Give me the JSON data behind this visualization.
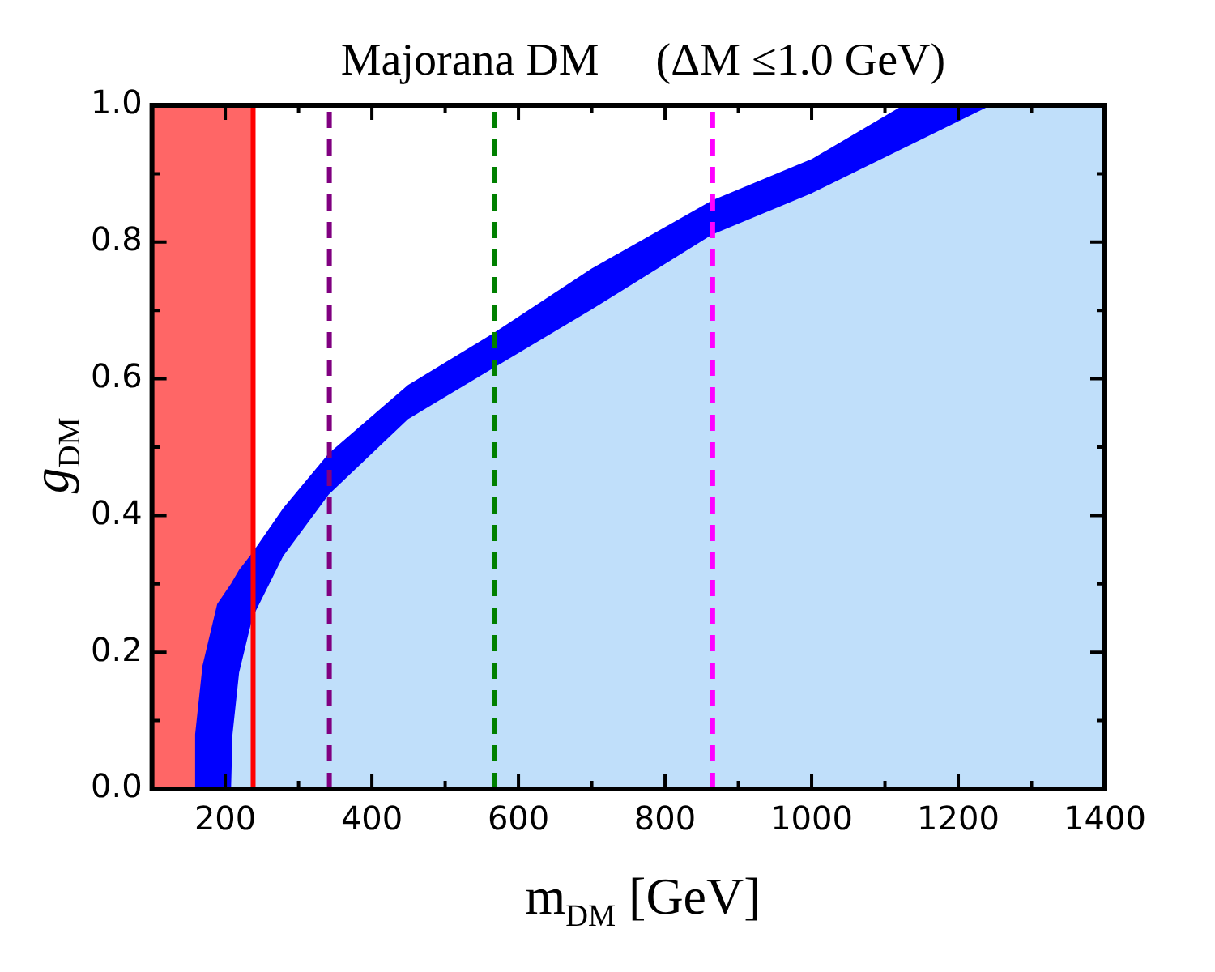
{
  "chart_data": {
    "type": "area",
    "title": "Majorana DM     (ΔM ≤1.0 GeV)",
    "xlabel": "m$_{DM}$ [GeV]",
    "ylabel": "g$_{DM}$",
    "xlim": [
      100,
      1400
    ],
    "ylim": [
      0,
      1
    ],
    "xticks": [
      {
        "value": 100,
        "label": null
      },
      200,
      {
        "value": 300,
        "label": null
      },
      400,
      {
        "value": 500,
        "label": null
      },
      600,
      {
        "value": 700,
        "label": null
      },
      800,
      {
        "value": 900,
        "label": null
      },
      1000,
      {
        "value": 1100,
        "label": null
      },
      1200,
      {
        "value": 1300,
        "label": null
      },
      1400
    ],
    "yticks": [
      {
        "value": 0,
        "label": "0.0"
      },
      {
        "value": 0.1,
        "label": null
      },
      {
        "value": 0.2,
        "label": "0.2"
      },
      {
        "value": 0.3,
        "label": null
      },
      {
        "value": 0.4,
        "label": "0.4"
      },
      {
        "value": 0.5,
        "label": null
      },
      {
        "value": 0.6,
        "label": "0.6"
      },
      {
        "value": 0.7,
        "label": null
      },
      {
        "value": 0.8,
        "label": "0.8"
      },
      {
        "value": 0.9,
        "label": null
      },
      {
        "value": 1.0,
        "label": "1.0"
      }
    ],
    "series": [
      {
        "type": "area",
        "color": "#0000ff",
        "x": [
          158,
          160,
          170,
          190,
          209,
          220,
          238,
          280,
          342,
          450,
          567,
          700,
          865,
          1000,
          1127,
          1247
        ],
        "values": [
          0,
          0.08,
          0.18,
          0.27,
          0.3,
          0.32,
          0.345,
          0.41,
          0.49,
          0.59,
          0.666,
          0.76,
          0.86,
          0.92,
          1.0,
          1.0
        ]
      },
      {
        "type": "area",
        "color": "#c0dffa",
        "x": [
          209,
          211,
          220,
          238,
          280,
          342,
          450,
          567,
          700,
          865,
          1000,
          1247,
          1400
        ],
        "values": [
          0,
          0.08,
          0.17,
          0.25,
          0.34,
          0.43,
          0.54,
          0.615,
          0.7,
          0.81,
          0.87,
          1.0,
          1.0
        ]
      }
    ],
    "bands": [
      {
        "axis": "x",
        "from": 100,
        "to": 238,
        "color": "#ff6666"
      }
    ],
    "ref_lines": [
      {
        "axis": "x",
        "value": 238,
        "color": "#ff0000",
        "line_style": "solid"
      },
      {
        "axis": "x",
        "value": 342,
        "color": "#800080",
        "line_style": "dashed"
      },
      {
        "axis": "x",
        "value": 567,
        "color": "#008000",
        "line_style": "dashed"
      },
      {
        "axis": "x",
        "value": 865,
        "color": "#ff00ff",
        "line_style": "dashed"
      }
    ],
    "grid": false,
    "legend": false
  }
}
